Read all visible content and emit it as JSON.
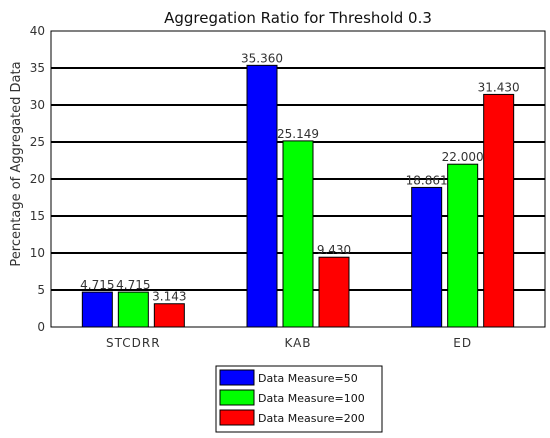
{
  "chart_data": {
    "type": "bar",
    "title": "Aggregation Ratio for Threshold 0.3",
    "xlabel": "",
    "ylabel": "Percentage of Aggregated Data",
    "ylim": [
      0,
      40
    ],
    "yticks": [
      0,
      5,
      10,
      15,
      20,
      25,
      30,
      35,
      40
    ],
    "grid": true,
    "legend_position": "bottom-center",
    "categories": [
      "STCDRR",
      "KAB",
      "ED"
    ],
    "series": [
      {
        "name": "Data Measure=50",
        "color": "#0000ff",
        "values": [
          4.715,
          35.36,
          18.861
        ],
        "labels": [
          "4.715",
          "35.360",
          "18.861"
        ]
      },
      {
        "name": "Data Measure=100",
        "color": "#00ff00",
        "values": [
          4.715,
          25.149,
          22.0
        ],
        "labels": [
          "4.715",
          "25.149",
          "22.000"
        ]
      },
      {
        "name": "Data Measure=200",
        "color": "#ff0000",
        "values": [
          3.143,
          9.43,
          31.43
        ],
        "labels": [
          "3.143",
          "9.430",
          "31.430"
        ]
      }
    ]
  }
}
